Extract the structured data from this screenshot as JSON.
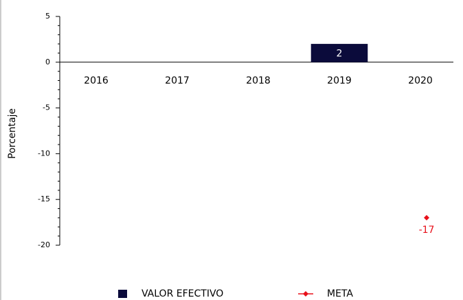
{
  "chart_data": {
    "type": "bar",
    "y_label": "Porcentaje",
    "categories": [
      "2016",
      "2017",
      "2018",
      "2019",
      "2020"
    ],
    "series": [
      {
        "name": "VALOR EFECTIVO",
        "type": "bar",
        "color": "#0b0b3b",
        "values": [
          null,
          null,
          null,
          2,
          null
        ]
      },
      {
        "name": "META",
        "type": "line",
        "color": "#e8101a",
        "values": [
          null,
          null,
          null,
          null,
          -17
        ]
      }
    ],
    "ylim": [
      -20,
      5
    ],
    "yticks": [
      -20,
      -15,
      -10,
      -5,
      0,
      5
    ]
  }
}
